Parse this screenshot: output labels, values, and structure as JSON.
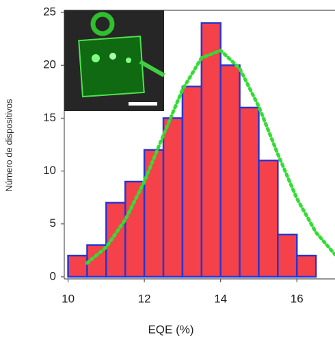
{
  "chart_data": {
    "type": "histogram",
    "xlabel": "EQE (%)",
    "ylabel": "Número de dispositivos",
    "bins": [
      10,
      10.5,
      11,
      11.5,
      12,
      12.5,
      13,
      13.5,
      14,
      14.5,
      15,
      15.5,
      16,
      16.5
    ],
    "values": [
      2,
      3,
      7,
      9,
      12,
      15,
      18,
      24,
      20,
      16,
      11,
      4,
      2
    ],
    "color": "#f5424a",
    "edge_color": "#2a35d0",
    "fit": {
      "x": [
        10.5,
        11,
        11.5,
        12,
        12.5,
        13,
        13.5,
        14,
        14.5,
        15,
        15.5,
        16,
        16.5,
        17
      ],
      "values": [
        1.3,
        2.8,
        5.4,
        9,
        13.4,
        17.7,
        20.7,
        21.4,
        19.7,
        16.1,
        11.6,
        7.4,
        4.2,
        2.1
      ],
      "color": "#33dd33"
    },
    "xlim": [
      9.9,
      17
    ],
    "ylim": [
      -0.2,
      25.2
    ],
    "xticks": [
      10,
      12,
      14,
      16
    ],
    "yticks": [
      0,
      5,
      10,
      15,
      20,
      25
    ]
  }
}
